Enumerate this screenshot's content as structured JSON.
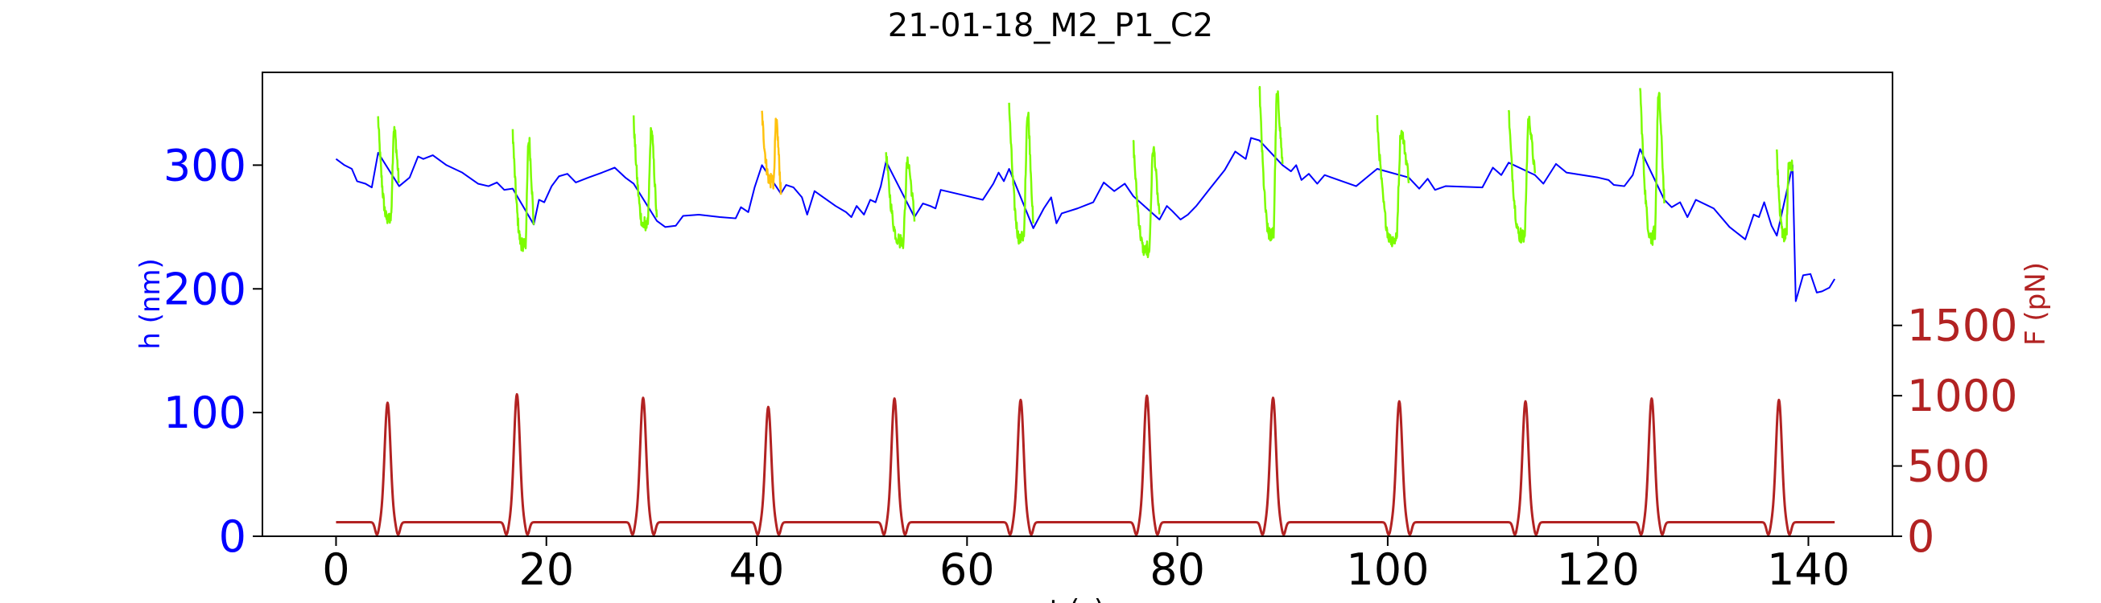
{
  "chart_data": {
    "type": "line",
    "title": "21-01-18_M2_P1_C2",
    "xlabel": "t (s)",
    "ylabel_left": "h (nm)",
    "ylabel_right": "F (pN)",
    "xlim": [
      -7,
      148
    ],
    "ylim_left": [
      0,
      375
    ],
    "ylim_right": [
      0,
      3300
    ],
    "x_ticks": [
      0,
      20,
      40,
      60,
      80,
      100,
      120,
      140
    ],
    "y_left_ticks": [
      0,
      100,
      200,
      300
    ],
    "y_right_ticks": [
      0,
      500,
      1000,
      1500
    ],
    "grid": false,
    "legend": "none",
    "colors": {
      "height": "#0000ff",
      "contact_green": "#7cfc00",
      "contact_yellow": "#ffc20e",
      "force": "#b22222",
      "axes": "#000000"
    },
    "height_series": [
      [
        0.0,
        305
      ],
      [
        0.8,
        300
      ],
      [
        1.5,
        297
      ],
      [
        2.0,
        287
      ],
      [
        2.8,
        285
      ],
      [
        3.4,
        282
      ],
      [
        4.0,
        310
      ],
      [
        6.0,
        283
      ],
      [
        7.0,
        290
      ],
      [
        7.8,
        307
      ],
      [
        8.3,
        305
      ],
      [
        9.2,
        308
      ],
      [
        10.5,
        300
      ],
      [
        12.0,
        294
      ],
      [
        13.5,
        285
      ],
      [
        14.5,
        283
      ],
      [
        15.3,
        286
      ],
      [
        16.0,
        280
      ],
      [
        16.8,
        281
      ],
      [
        18.8,
        252
      ],
      [
        19.3,
        272
      ],
      [
        19.8,
        270
      ],
      [
        20.5,
        283
      ],
      [
        21.2,
        291
      ],
      [
        22.0,
        293
      ],
      [
        22.8,
        286
      ],
      [
        24.0,
        290
      ],
      [
        25.3,
        294
      ],
      [
        26.5,
        298
      ],
      [
        27.5,
        290
      ],
      [
        28.3,
        285
      ],
      [
        30.5,
        255
      ],
      [
        31.3,
        250
      ],
      [
        32.3,
        251
      ],
      [
        33.0,
        259
      ],
      [
        34.5,
        260
      ],
      [
        36.5,
        258
      ],
      [
        38.0,
        257
      ],
      [
        38.5,
        266
      ],
      [
        39.2,
        262
      ],
      [
        39.8,
        282
      ],
      [
        40.5,
        300
      ],
      [
        42.3,
        277
      ],
      [
        42.8,
        284
      ],
      [
        43.5,
        282
      ],
      [
        44.3,
        274
      ],
      [
        44.8,
        260
      ],
      [
        45.5,
        279
      ],
      [
        46.5,
        273
      ],
      [
        47.5,
        267
      ],
      [
        48.5,
        262
      ],
      [
        49.0,
        258
      ],
      [
        49.5,
        267
      ],
      [
        50.2,
        260
      ],
      [
        50.8,
        272
      ],
      [
        51.3,
        270
      ],
      [
        51.8,
        283
      ],
      [
        52.3,
        303
      ],
      [
        55.0,
        258
      ],
      [
        55.8,
        269
      ],
      [
        56.5,
        267
      ],
      [
        57.0,
        265
      ],
      [
        57.5,
        280
      ],
      [
        59.5,
        276
      ],
      [
        61.5,
        272
      ],
      [
        62.5,
        285
      ],
      [
        63.0,
        294
      ],
      [
        63.5,
        287
      ],
      [
        64.0,
        297
      ],
      [
        66.3,
        249
      ],
      [
        67.3,
        265
      ],
      [
        68.0,
        274
      ],
      [
        68.5,
        253
      ],
      [
        69.0,
        261
      ],
      [
        70.5,
        265
      ],
      [
        72.0,
        270
      ],
      [
        73.0,
        286
      ],
      [
        74.0,
        279
      ],
      [
        75.0,
        285
      ],
      [
        75.8,
        275
      ],
      [
        78.3,
        256
      ],
      [
        79.0,
        267
      ],
      [
        79.5,
        263
      ],
      [
        80.3,
        256
      ],
      [
        81.0,
        260
      ],
      [
        81.8,
        267
      ],
      [
        83.0,
        280
      ],
      [
        84.5,
        296
      ],
      [
        85.5,
        311
      ],
      [
        86.5,
        305
      ],
      [
        87.0,
        322
      ],
      [
        87.8,
        320
      ],
      [
        90.0,
        300
      ],
      [
        90.8,
        295
      ],
      [
        91.3,
        300
      ],
      [
        91.8,
        288
      ],
      [
        92.5,
        293
      ],
      [
        93.3,
        285
      ],
      [
        94.0,
        292
      ],
      [
        97.0,
        283
      ],
      [
        98.0,
        290
      ],
      [
        99.0,
        297
      ],
      [
        102.0,
        290
      ],
      [
        103.0,
        281
      ],
      [
        103.8,
        289
      ],
      [
        104.5,
        280
      ],
      [
        105.5,
        283
      ],
      [
        109.0,
        282
      ],
      [
        110.0,
        298
      ],
      [
        110.8,
        292
      ],
      [
        111.5,
        302
      ],
      [
        114.0,
        292
      ],
      [
        114.8,
        285
      ],
      [
        116.0,
        301
      ],
      [
        117.0,
        294
      ],
      [
        120.0,
        290
      ],
      [
        121.0,
        288
      ],
      [
        121.5,
        284
      ],
      [
        122.5,
        283
      ],
      [
        123.3,
        292
      ],
      [
        124.0,
        313
      ],
      [
        126.3,
        272
      ],
      [
        127.0,
        266
      ],
      [
        127.8,
        270
      ],
      [
        128.5,
        258
      ],
      [
        129.3,
        272
      ],
      [
        131.0,
        265
      ],
      [
        132.5,
        250
      ],
      [
        134.0,
        240
      ],
      [
        134.8,
        260
      ],
      [
        135.3,
        258
      ],
      [
        135.8,
        270
      ],
      [
        136.5,
        251
      ],
      [
        137.0,
        243
      ],
      [
        138.5,
        300
      ],
      [
        138.8,
        190
      ],
      [
        139.5,
        211
      ],
      [
        140.2,
        212
      ],
      [
        140.8,
        197
      ],
      [
        141.3,
        198
      ],
      [
        142.0,
        201
      ],
      [
        142.5,
        208
      ]
    ],
    "contact_events": [
      {
        "t0": 4.0,
        "t1": 6.0,
        "h_start": 338,
        "h_min": 257,
        "h_end": 283,
        "color": "green"
      },
      {
        "t0": 16.8,
        "t1": 18.8,
        "h_start": 328,
        "h_min": 236,
        "h_end": 252,
        "color": "green"
      },
      {
        "t0": 28.3,
        "t1": 30.5,
        "h_start": 336,
        "h_min": 251,
        "h_end": 255,
        "color": "green"
      },
      {
        "t0": 40.5,
        "t1": 42.3,
        "h_start": 342,
        "h_min": 287,
        "h_end": 277,
        "color": "yellow"
      },
      {
        "t0": 52.3,
        "t1": 55.0,
        "h_start": 311,
        "h_min": 240,
        "h_end": 258,
        "color": "green"
      },
      {
        "t0": 64.0,
        "t1": 66.3,
        "h_start": 350,
        "h_min": 241,
        "h_end": 249,
        "color": "green"
      },
      {
        "t0": 75.8,
        "t1": 78.3,
        "h_start": 321,
        "h_min": 231,
        "h_end": 256,
        "color": "green"
      },
      {
        "t0": 87.8,
        "t1": 90.0,
        "h_start": 366,
        "h_min": 244,
        "h_end": 300,
        "color": "green"
      },
      {
        "t0": 99.0,
        "t1": 102.0,
        "h_start": 336,
        "h_min": 240,
        "h_end": 290,
        "color": "green"
      },
      {
        "t0": 111.5,
        "t1": 114.0,
        "h_start": 346,
        "h_min": 243,
        "h_end": 292,
        "color": "green"
      },
      {
        "t0": 124.0,
        "t1": 126.3,
        "h_start": 365,
        "h_min": 243,
        "h_end": 272,
        "color": "green"
      },
      {
        "t0": 137.0,
        "t1": 138.5,
        "h_start": 308,
        "h_min": 244,
        "h_end": 300,
        "color": "green"
      }
    ],
    "force_pulses": {
      "baseline": 100,
      "peak_times": [
        4.9,
        17.2,
        29.2,
        41.1,
        53.1,
        65.1,
        77.1,
        89.1,
        101.1,
        113.1,
        125.1,
        137.2
      ],
      "peak_values": [
        950,
        1010,
        985,
        920,
        980,
        970,
        1000,
        985,
        960,
        960,
        980,
        970
      ],
      "start_time": 0.0,
      "end_time": 142.5
    }
  }
}
